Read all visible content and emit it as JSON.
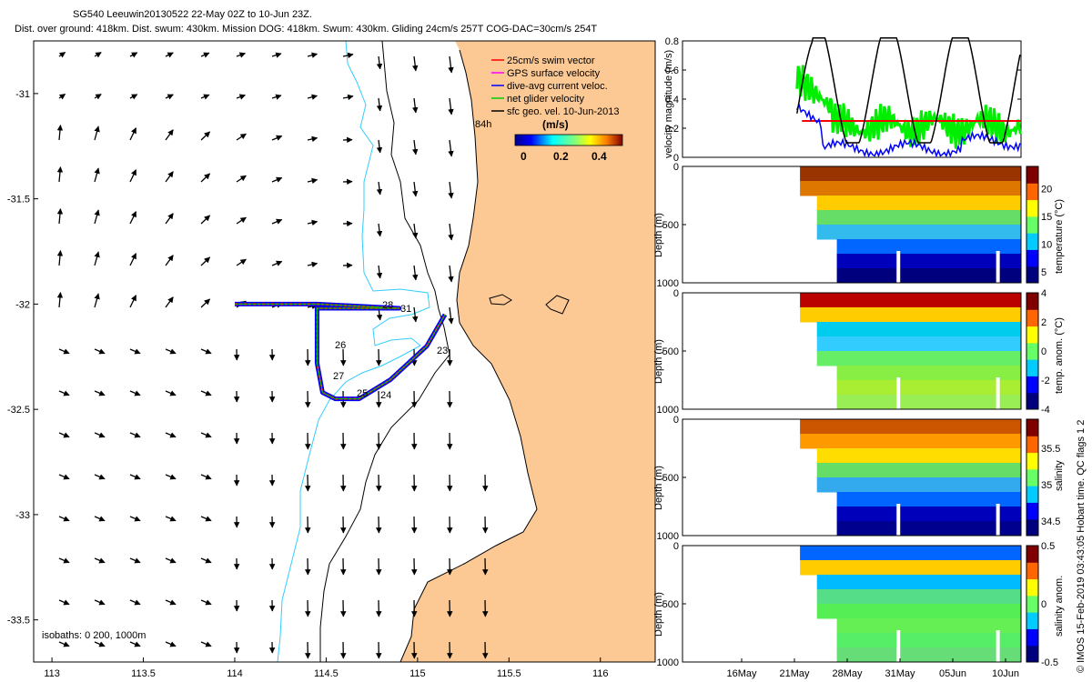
{
  "header": {
    "line1": "SG540 Leeuwin20130522 22-May 02Z to 10-Jun 23Z.",
    "line2": "Dist. over ground: 418km. Dist. swum: 430km. Mission DOG: 418km. Swum: 430km. Gliding 24cm/s 257T COG-DAC=30cm/s 254T"
  },
  "chart_data": [
    {
      "type": "scatter",
      "name": "map",
      "title": "",
      "xlabel": "",
      "ylabel": "",
      "xlim": [
        112.9,
        116.3
      ],
      "ylim": [
        -33.7,
        -30.75
      ],
      "x_ticks": [
        "113",
        "113.5",
        "114",
        "114.5",
        "115",
        "115.5",
        "116"
      ],
      "y_ticks": [
        "-31",
        "-31.5",
        "-32",
        "-32.5",
        "-33",
        "-33.5"
      ],
      "legend": [
        {
          "label": "25cm/s swim vector",
          "color": "#ff0000"
        },
        {
          "label": "GPS surface velocity",
          "color": "#ff00ff"
        },
        {
          "label": "dive-avg current veloc.",
          "color": "#0000ff"
        },
        {
          "label": "net glider velocity",
          "color": "#00cc00"
        },
        {
          "label": "sfc geo. vel. 10-Jun-2013",
          "color": "#000000"
        }
      ],
      "legend_extra": "84h",
      "colorbar": {
        "title": "(m/s)",
        "ticks": [
          "0",
          "0.2",
          "0.4"
        ],
        "range": [
          0,
          0.5
        ]
      },
      "annotation_isobaths": "isobaths: 0   200, 1000m",
      "track_labels": [
        "23",
        "24",
        "25",
        "26",
        "27",
        "28",
        "31"
      ],
      "track": [
        [
          114.0,
          -32.0
        ],
        [
          114.45,
          -32.0
        ],
        [
          114.9,
          -32.02
        ],
        [
          114.45,
          -32.02
        ],
        [
          114.45,
          -32.15
        ],
        [
          114.45,
          -32.28
        ],
        [
          114.48,
          -32.42
        ],
        [
          114.55,
          -32.45
        ],
        [
          114.68,
          -32.45
        ],
        [
          114.85,
          -32.36
        ],
        [
          115.05,
          -32.2
        ],
        [
          115.15,
          -32.05
        ]
      ],
      "land_color": "#fcc995",
      "coast_color": "#000000",
      "isobath_color": "#00ccff"
    },
    {
      "type": "line",
      "name": "velocity",
      "ylabel": "velocity magnitude (m/s)",
      "ylim": [
        0,
        0.8
      ],
      "y_ticks": [
        "0",
        "0.2",
        "0.4",
        "0.6",
        "0.8"
      ],
      "x_range_days": [
        0,
        34
      ]
    },
    {
      "type": "heatmap",
      "name": "temperature",
      "ylabel": "Depth (m)",
      "y_ticks": [
        "0",
        "500",
        "1000"
      ],
      "colorbar_label": "temperature (°C)",
      "colorbar_ticks": [
        "5",
        "10",
        "15",
        "20"
      ],
      "cmin": 3,
      "cmax": 24
    },
    {
      "type": "heatmap",
      "name": "temp-anomaly",
      "ylabel": "Depth (m)",
      "y_ticks": [
        "0",
        "500",
        "1000"
      ],
      "colorbar_label": "temp. anom. (°C)",
      "colorbar_ticks": [
        "-4",
        "-2",
        "0",
        "2",
        "4"
      ],
      "cmin": -4,
      "cmax": 4
    },
    {
      "type": "heatmap",
      "name": "salinity",
      "ylabel": "Depth (m)",
      "y_ticks": [
        "0",
        "500",
        "1000"
      ],
      "colorbar_label": "salinity",
      "colorbar_ticks": [
        "34.5",
        "35",
        "35.5"
      ],
      "cmin": 34.3,
      "cmax": 35.9
    },
    {
      "type": "heatmap",
      "name": "salinity-anomaly",
      "ylabel": "Depth (m)",
      "y_ticks": [
        "0",
        "500",
        "1000"
      ],
      "colorbar_label": "salinity anom.",
      "colorbar_ticks": [
        "-0.5",
        "0",
        "0.5"
      ],
      "cmin": -0.5,
      "cmax": 0.5,
      "x_ticks": [
        "16May",
        "21May",
        "28May",
        "31May",
        "05Jun",
        "10Jun"
      ]
    }
  ],
  "credit": "© IMOS 15-Feb-2019 03:43:05 Hobart time. QC flags 1  2"
}
